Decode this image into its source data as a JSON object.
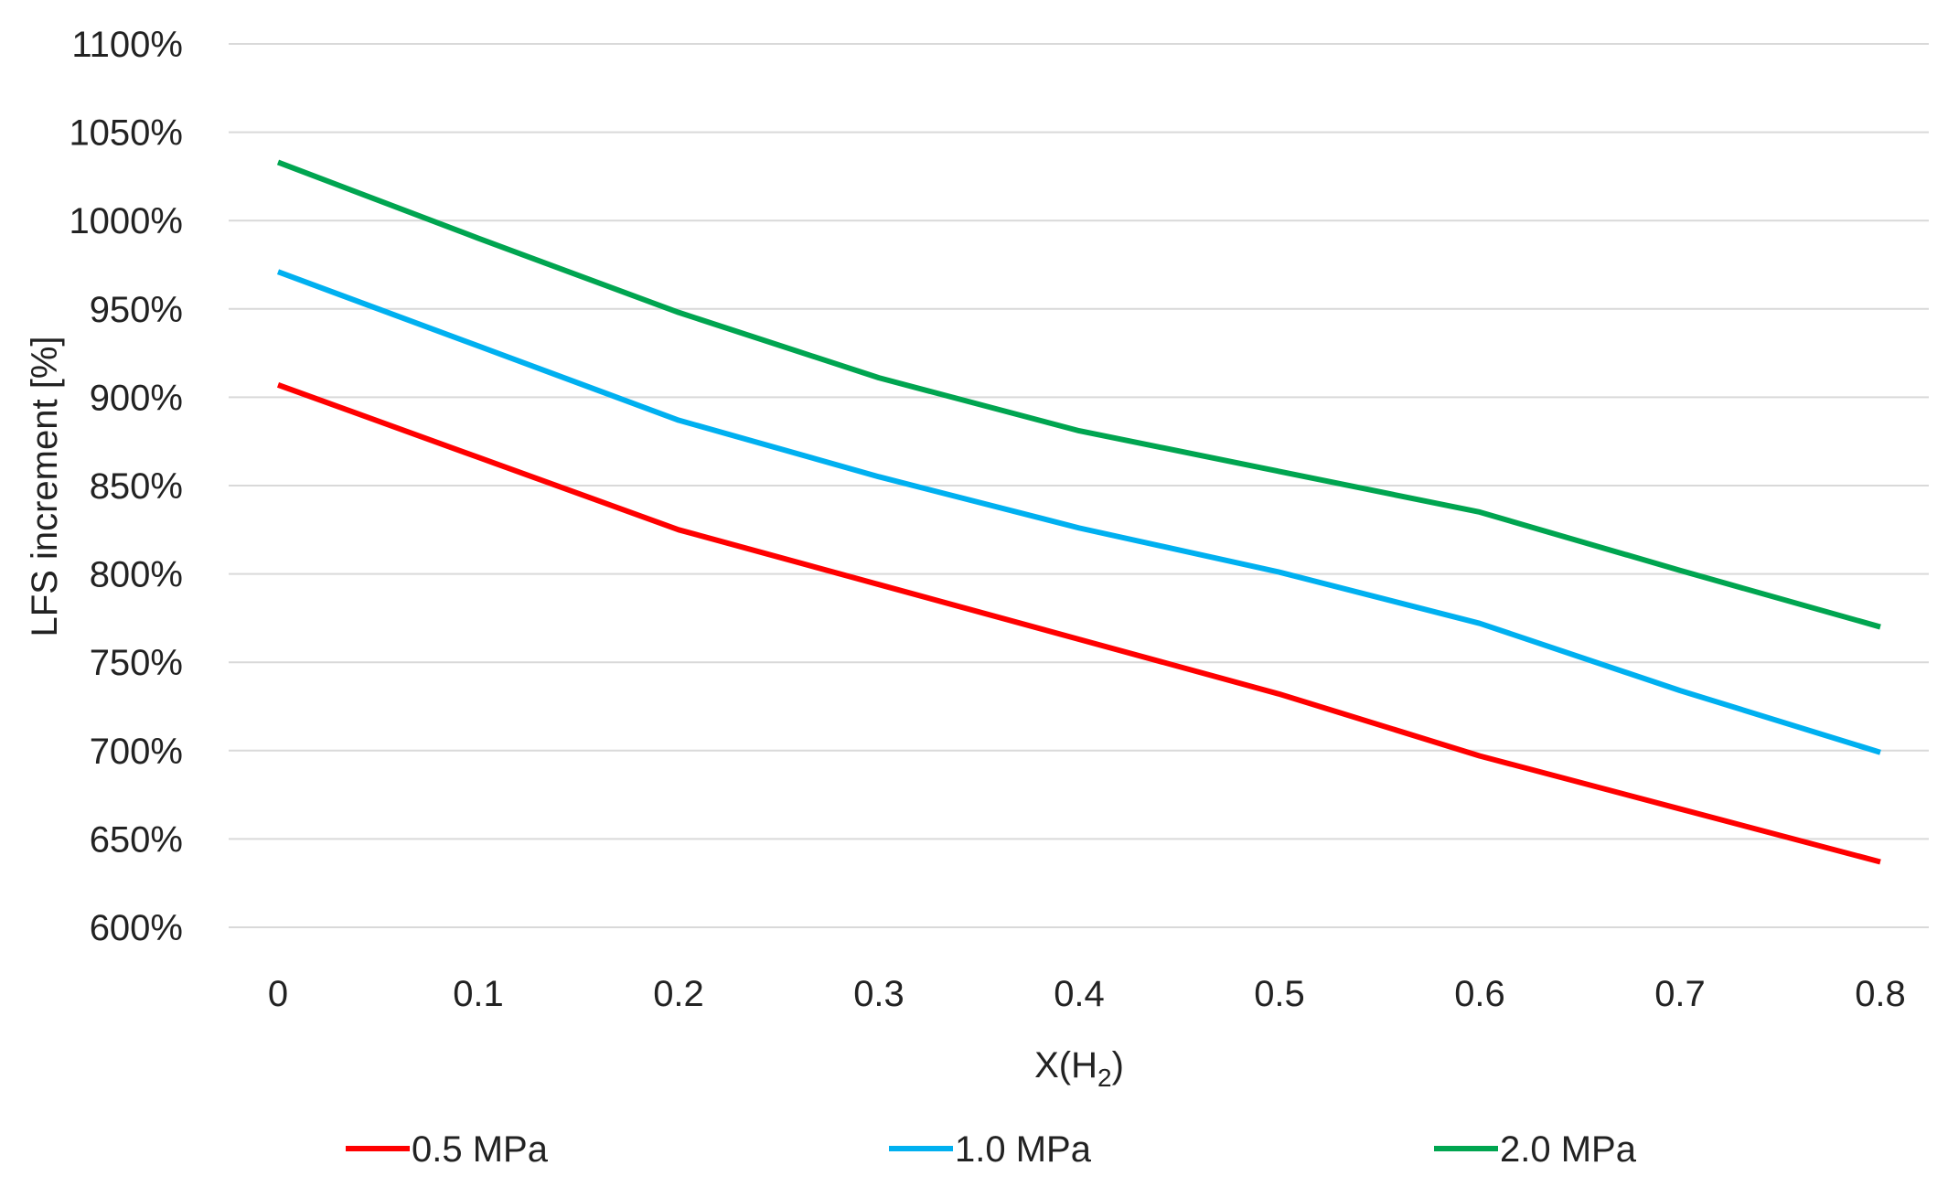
{
  "chart_data": {
    "type": "line",
    "title": "",
    "xlabel": "X(H",
    "xlabel_sub": "2",
    "xlabel_close": ")",
    "ylabel": "LFS increment [%]",
    "x": [
      0,
      0.1,
      0.2,
      0.3,
      0.4,
      0.5,
      0.6,
      0.7,
      0.8
    ],
    "x_tick_labels": [
      "0",
      "0.1",
      "0.2",
      "0.3",
      "0.4",
      "0.5",
      "0.6",
      "0.7",
      "0.8"
    ],
    "ylim": [
      600,
      1100
    ],
    "y_ticks": [
      600,
      650,
      700,
      750,
      800,
      850,
      900,
      950,
      1000,
      1050,
      1100
    ],
    "y_tick_labels": [
      "600%",
      "650%",
      "700%",
      "750%",
      "800%",
      "850%",
      "900%",
      "950%",
      "1000%",
      "1050%",
      "1100%"
    ],
    "grid": true,
    "legend_position": "bottom",
    "series": [
      {
        "name": "0.5 MPa",
        "color": "#ff0000",
        "values": [
          907,
          866,
          825,
          794,
          763,
          732,
          697,
          667,
          637
        ]
      },
      {
        "name": "1.0 MPa",
        "color": "#00b0f0",
        "values": [
          971,
          929,
          887,
          855,
          826,
          801,
          772,
          734,
          699
        ]
      },
      {
        "name": "2.0 MPa",
        "color": "#00a550",
        "values": [
          1033,
          990,
          948,
          911,
          881,
          858,
          835,
          802,
          770
        ]
      }
    ]
  }
}
